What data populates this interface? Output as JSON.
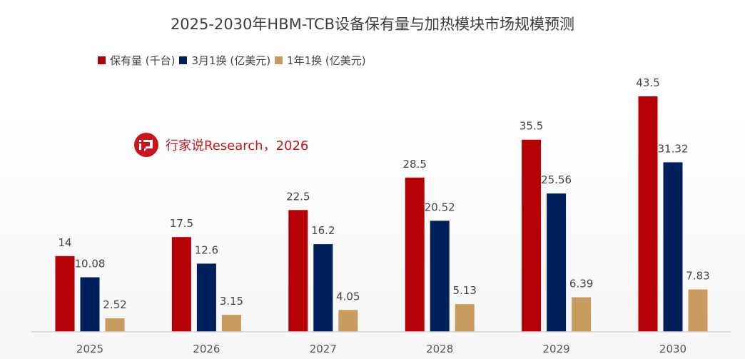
{
  "chart_data": {
    "type": "bar",
    "title": "2025-2030年HBM-TCB设备保有量与加热模块市场规模预测",
    "xlabel": "",
    "ylabel": "",
    "categories": [
      "2025",
      "2026",
      "2027",
      "2028",
      "2029",
      "2030"
    ],
    "series": [
      {
        "name": "保有量 (千台)",
        "color": "#b50006",
        "values": [
          14,
          17.5,
          22.5,
          28.5,
          35.5,
          43.5
        ]
      },
      {
        "name": "3月1换 (亿美元)",
        "color": "#00205c",
        "values": [
          10.08,
          12.6,
          16.2,
          20.52,
          25.56,
          31.32
        ]
      },
      {
        "name": "1年1换 (亿美元)",
        "color": "#c89b5e",
        "values": [
          2.52,
          3.15,
          4.05,
          5.13,
          6.39,
          7.83
        ]
      }
    ],
    "value_labels": [
      [
        "14",
        "17.5",
        "22.5",
        "28.5",
        "35.5",
        "43.5"
      ],
      [
        "10.08",
        "12.6",
        "16.2",
        "20.52",
        "25.56",
        "31.32"
      ],
      [
        "2.52",
        "3.15",
        "4.05",
        "5.13",
        "6.39",
        "7.83"
      ]
    ],
    "ylim": [
      0,
      45
    ],
    "grid": false,
    "legend_position": "top-left"
  },
  "watermark": {
    "text": "行家说Research，2026",
    "icon": "brand-logo-icon",
    "color": "#c9151e"
  }
}
